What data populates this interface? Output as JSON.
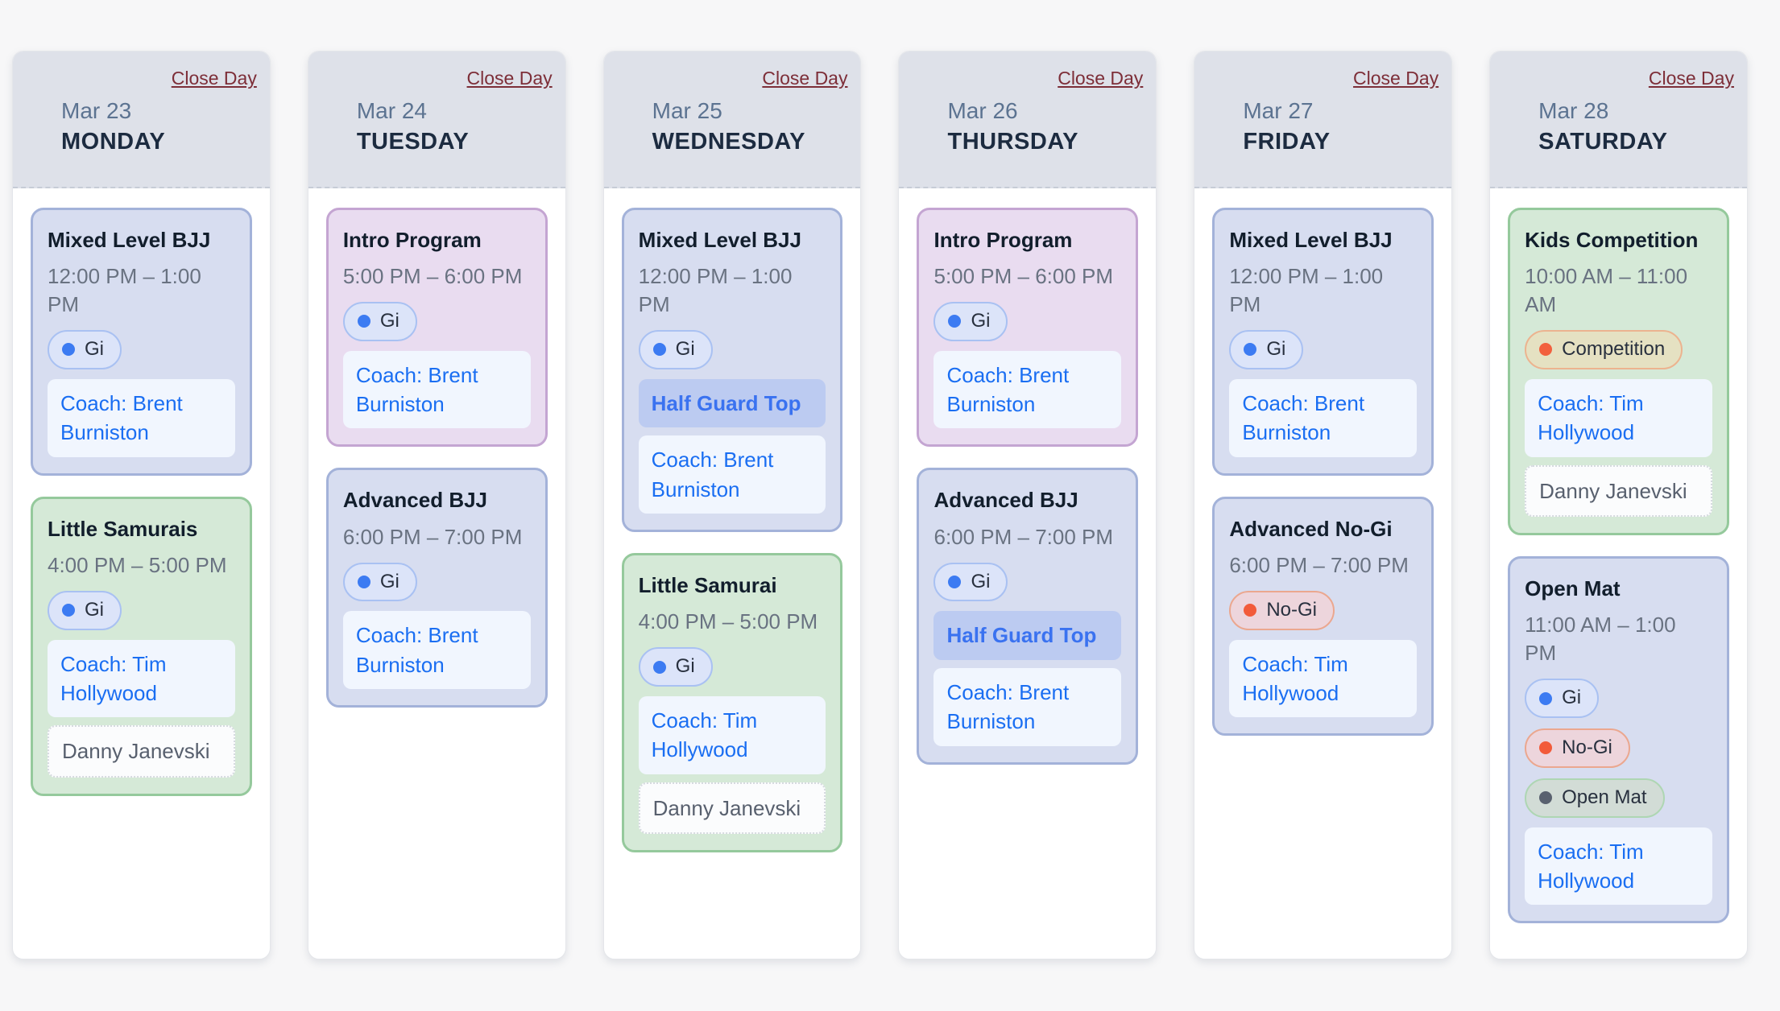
{
  "board": {
    "background": "#f7f7f8",
    "header_background": "#dee1e9",
    "close_day_color": "#7d2e38"
  },
  "card_colors": {
    "blue": {
      "bg": "#d7ddf0",
      "border": "#a3b2d9"
    },
    "purple": {
      "bg": "#e9dcf0",
      "border": "#c4a5d2"
    },
    "green": {
      "bg": "#d5e9d7",
      "border": "#95c99c"
    }
  },
  "badge_styles": {
    "gi": {
      "bg": "#dce4f9",
      "border": "#a9c1f2",
      "dot": "#3c7bf2"
    },
    "nogi": {
      "bg": "#edd5dc",
      "border": "#eba78f",
      "dot": "#f25b3a"
    },
    "competition": {
      "bg": "#e5e1c2",
      "border": "#ecb38f",
      "dot": "#f2603e"
    },
    "openmat": {
      "bg": "#d2dcd6",
      "border": "#aed6b3",
      "dot": "#59616f"
    }
  },
  "days": [
    {
      "date": "Mar 23",
      "name": "MONDAY",
      "close_label": "Close Day",
      "classes": [
        {
          "title": "Mixed Level BJJ",
          "time": "12:00 PM – 1:00 PM",
          "color": "blue",
          "badges": [
            {
              "type": "gi",
              "label": "Gi"
            }
          ],
          "topic": null,
          "coach": "Coach: Brent Burniston",
          "attendees": []
        },
        {
          "title": "Little Samurais",
          "time": "4:00 PM – 5:00 PM",
          "color": "green",
          "badges": [
            {
              "type": "gi",
              "label": "Gi"
            }
          ],
          "topic": null,
          "coach": "Coach: Tim Hollywood",
          "attendees": [
            "Danny Janevski"
          ]
        }
      ]
    },
    {
      "date": "Mar 24",
      "name": "TUESDAY",
      "close_label": "Close Day",
      "classes": [
        {
          "title": "Intro Program",
          "time": "5:00 PM – 6:00 PM",
          "color": "purple",
          "badges": [
            {
              "type": "gi",
              "label": "Gi"
            }
          ],
          "topic": null,
          "coach": "Coach: Brent Burniston",
          "attendees": []
        },
        {
          "title": "Advanced BJJ",
          "time": "6:00 PM – 7:00 PM",
          "color": "blue",
          "badges": [
            {
              "type": "gi",
              "label": "Gi"
            }
          ],
          "topic": null,
          "coach": "Coach: Brent Burniston",
          "attendees": []
        }
      ]
    },
    {
      "date": "Mar 25",
      "name": "WEDNESDAY",
      "close_label": "Close Day",
      "classes": [
        {
          "title": "Mixed Level BJJ",
          "time": "12:00 PM – 1:00 PM",
          "color": "blue",
          "badges": [
            {
              "type": "gi",
              "label": "Gi"
            }
          ],
          "topic": "Half Guard Top",
          "coach": "Coach: Brent Burniston",
          "attendees": []
        },
        {
          "title": "Little Samurai",
          "time": "4:00 PM – 5:00 PM",
          "color": "green",
          "badges": [
            {
              "type": "gi",
              "label": "Gi"
            }
          ],
          "topic": null,
          "coach": "Coach: Tim Hollywood",
          "attendees": [
            "Danny Janevski"
          ]
        }
      ]
    },
    {
      "date": "Mar 26",
      "name": "THURSDAY",
      "close_label": "Close Day",
      "classes": [
        {
          "title": "Intro Program",
          "time": "5:00 PM – 6:00 PM",
          "color": "purple",
          "badges": [
            {
              "type": "gi",
              "label": "Gi"
            }
          ],
          "topic": null,
          "coach": "Coach: Brent Burniston",
          "attendees": []
        },
        {
          "title": "Advanced BJJ",
          "time": "6:00 PM – 7:00 PM",
          "color": "blue",
          "badges": [
            {
              "type": "gi",
              "label": "Gi"
            }
          ],
          "topic": "Half Guard Top",
          "coach": "Coach: Brent Burniston",
          "attendees": []
        }
      ]
    },
    {
      "date": "Mar 27",
      "name": "FRIDAY",
      "close_label": "Close Day",
      "classes": [
        {
          "title": "Mixed Level BJJ",
          "time": "12:00 PM – 1:00 PM",
          "color": "blue",
          "badges": [
            {
              "type": "gi",
              "label": "Gi"
            }
          ],
          "topic": null,
          "coach": "Coach: Brent Burniston",
          "attendees": []
        },
        {
          "title": "Advanced No-Gi",
          "time": "6:00 PM – 7:00 PM",
          "color": "blue",
          "badges": [
            {
              "type": "nogi",
              "label": "No-Gi"
            }
          ],
          "topic": null,
          "coach": "Coach: Tim Hollywood",
          "attendees": []
        }
      ]
    },
    {
      "date": "Mar 28",
      "name": "SATURDAY",
      "close_label": "Close Day",
      "classes": [
        {
          "title": "Kids Competition",
          "time": "10:00 AM – 11:00 AM",
          "color": "green",
          "badges": [
            {
              "type": "competition",
              "label": "Competition"
            }
          ],
          "topic": null,
          "coach": "Coach: Tim Hollywood",
          "attendees": [
            "Danny Janevski"
          ]
        },
        {
          "title": "Open Mat",
          "time": "11:00 AM – 1:00 PM",
          "color": "blue",
          "badges": [
            {
              "type": "gi",
              "label": "Gi"
            },
            {
              "type": "nogi",
              "label": "No-Gi"
            },
            {
              "type": "openmat",
              "label": "Open Mat"
            }
          ],
          "topic": null,
          "coach": "Coach: Tim Hollywood",
          "attendees": []
        }
      ]
    }
  ]
}
